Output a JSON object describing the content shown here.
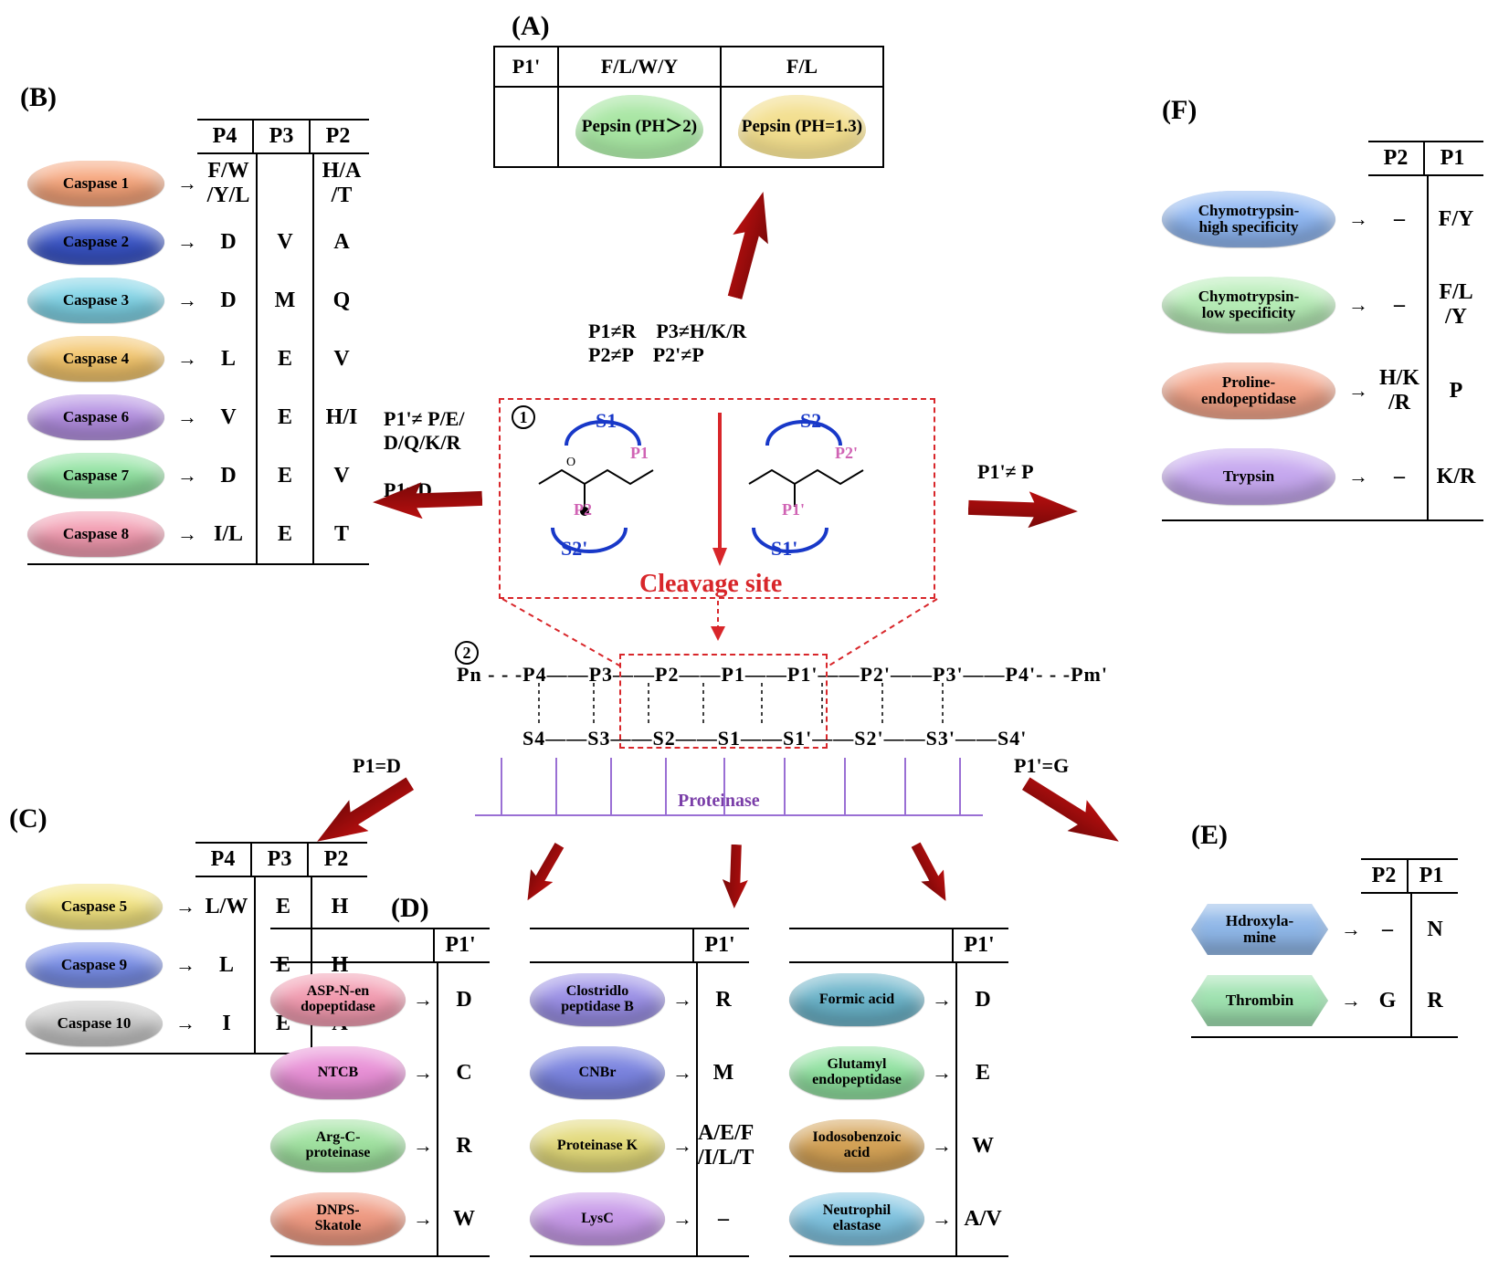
{
  "labels": {
    "A": "(A)",
    "B": "(B)",
    "C": "(C)",
    "D": "(D)",
    "E": "(E)",
    "F": "(F)",
    "cleavage": "Cleavage site",
    "proteinase": "Proteinase",
    "circ1": "1",
    "circ2": "2"
  },
  "colors": {
    "caspase1": "#f6a47a",
    "caspase2": "#3a55c9",
    "caspase3": "#7fd3e6",
    "caspase4": "#f3c56c",
    "caspase6": "#b38fe1",
    "caspase7": "#8fe19f",
    "caspase8": "#f29bb0",
    "caspase5": "#f3e481",
    "caspase9": "#7a8fe8",
    "caspase10": "#c8c8c8",
    "pepsin_green": "#a8e6a3",
    "pepsin_yellow": "#f3df8f",
    "chymo_hi": "#8fb7f2",
    "chymo_lo": "#b6ecb6",
    "proline": "#f4a58a",
    "trypsin": "#c6a8ef",
    "aspN": "#f29bb0",
    "ntcb": "#e890d6",
    "argC": "#9fe19f",
    "dnps": "#ef9a82",
    "clost": "#9a8fe6",
    "cnbr": "#7a83df",
    "protK": "#e2d97a",
    "lysC": "#c79ae8",
    "formic": "#6ab3c9",
    "glut": "#8fe19f",
    "iodo": "#d4a256",
    "neutro": "#7fc3e0",
    "hydroxy": "#8fb7e8",
    "thrombin": "#9fe2b0",
    "arrow": "#a81010",
    "dash": "#d8262a"
  },
  "center": {
    "s_labels": [
      "S1",
      "S2",
      "S2'",
      "S1'"
    ],
    "p_labels": [
      "P1",
      "P2",
      "P2'",
      "P1'"
    ],
    "chain_p": "Pn - - -P4——P3——P2——P1——P1'——P2'——P3'——P4'- - -Pm'",
    "chain_s": "S4——S3——S2——S1——S1'——S2'——S3'——S4'"
  },
  "conditions": {
    "top": "P1≠R    P3≠H/K/R\nP2≠P    P2'≠P",
    "left": "P1'≠ P/E/\nD/Q/K/R\n\nP1=D",
    "right": "P1'≠ P",
    "bl": "P1=D",
    "br": "P1'=G"
  },
  "A": {
    "head": [
      "P1'",
      "F/L/W/Y",
      "F/L"
    ],
    "pepsin1": "Pepsin\n(PH＞2)",
    "pepsin2": "Pepsin\n(PH=1.3)"
  },
  "B": {
    "cols": [
      "P4",
      "P3",
      "P2"
    ],
    "rows": [
      {
        "name": "Caspase 1",
        "colorKey": "caspase1",
        "p4": "F/W\n/Y/L",
        "p3": "",
        "p2": "H/A\n/T"
      },
      {
        "name": "Caspase 2",
        "colorKey": "caspase2",
        "p4": "D",
        "p3": "V",
        "p2": "A"
      },
      {
        "name": "Caspase 3",
        "colorKey": "caspase3",
        "p4": "D",
        "p3": "M",
        "p2": "Q"
      },
      {
        "name": "Caspase 4",
        "colorKey": "caspase4",
        "p4": "L",
        "p3": "E",
        "p2": "V"
      },
      {
        "name": "Caspase 6",
        "colorKey": "caspase6",
        "p4": "V",
        "p3": "E",
        "p2": "H/I"
      },
      {
        "name": "Caspase 7",
        "colorKey": "caspase7",
        "p4": "D",
        "p3": "E",
        "p2": "V"
      },
      {
        "name": "Caspase 8",
        "colorKey": "caspase8",
        "p4": "I/L",
        "p3": "E",
        "p2": "T"
      }
    ]
  },
  "C": {
    "cols": [
      "P4",
      "P3",
      "P2"
    ],
    "rows": [
      {
        "name": "Caspase 5",
        "colorKey": "caspase5",
        "p4": "L/W",
        "p3": "E",
        "p2": "H"
      },
      {
        "name": "Caspase 9",
        "colorKey": "caspase9",
        "p4": "L",
        "p3": "E",
        "p2": "H"
      },
      {
        "name": "Caspase 10",
        "colorKey": "caspase10",
        "p4": "I",
        "p3": "E",
        "p2": "A"
      }
    ]
  },
  "F": {
    "cols": [
      "P2",
      "P1"
    ],
    "rows": [
      {
        "name": "Chymotrypsin-\nhigh specificity",
        "colorKey": "chymo_hi",
        "p2": "–",
        "p1": "F/Y"
      },
      {
        "name": "Chymotrypsin-\nlow specificity",
        "colorKey": "chymo_lo",
        "p2": "–",
        "p1": "F/L\n/Y"
      },
      {
        "name": "Proline-\nendopeptidase",
        "colorKey": "proline",
        "p2": "H/K\n/R",
        "p1": "P"
      },
      {
        "name": "Trypsin",
        "colorKey": "trypsin",
        "p2": "–",
        "p1": "K/R"
      }
    ]
  },
  "E": {
    "cols": [
      "P2",
      "P1"
    ],
    "rows": [
      {
        "name": "Hdroxyla-\nmine",
        "colorKey": "hydroxy",
        "p2": "–",
        "p1": "N"
      },
      {
        "name": "Thrombin",
        "colorKey": "thrombin",
        "p2": "G",
        "p1": "R"
      }
    ]
  },
  "D": {
    "head": "P1'",
    "cols": [
      [
        {
          "name": "ASP-N-en\ndopeptidase",
          "colorKey": "aspN",
          "p": "D"
        },
        {
          "name": "NTCB",
          "colorKey": "ntcb",
          "p": "C"
        },
        {
          "name": "Arg-C-\nproteinase",
          "colorKey": "argC",
          "p": "R"
        },
        {
          "name": "DNPS-\nSkatole",
          "colorKey": "dnps",
          "p": "W"
        }
      ],
      [
        {
          "name": "Clostridlo\npeptidase B",
          "colorKey": "clost",
          "p": "R"
        },
        {
          "name": "CNBr",
          "colorKey": "cnbr",
          "p": "M"
        },
        {
          "name": "Proteinase K",
          "colorKey": "protK",
          "p": "A/E/F\n/I/L/T"
        },
        {
          "name": "LysC",
          "colorKey": "lysC",
          "p": "–"
        }
      ],
      [
        {
          "name": "Formic acid",
          "colorKey": "formic",
          "p": "D"
        },
        {
          "name": "Glutamyl\nendopeptidase",
          "colorKey": "glut",
          "p": "E"
        },
        {
          "name": "Iodosobenzoic\nacid",
          "colorKey": "iodo",
          "p": "W"
        },
        {
          "name": "Neutrophil\nelastase",
          "colorKey": "neutro",
          "p": "A/V"
        }
      ]
    ]
  }
}
